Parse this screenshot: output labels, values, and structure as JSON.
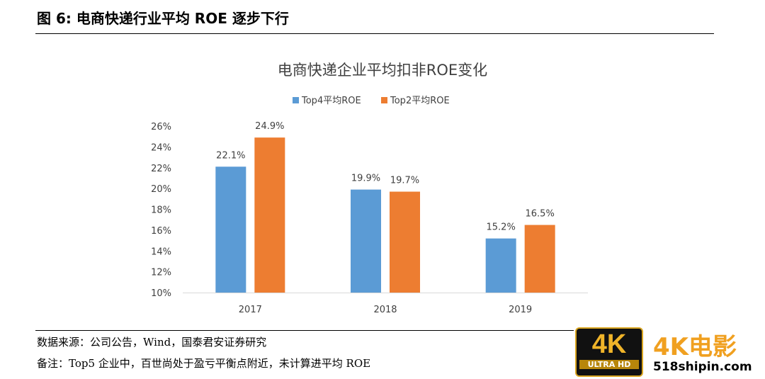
{
  "figure_title": "图 6: 电商快递行业平均 ROE 逐步下行",
  "source": "数据来源：公司公告，Wind，国泰君安证券研究",
  "note": "备注：Top5 企业中，百世尚处于盈亏平衡点附近，未计算进平均 ROE",
  "watermark": {
    "badge": "4K",
    "badge_sub": "ULTRA HD",
    "name": "4K电影",
    "url": "518shipin.com"
  },
  "chart_data": {
    "type": "bar",
    "title": "电商快递企业平均扣非ROE变化",
    "categories": [
      "2017",
      "2018",
      "2019"
    ],
    "series": [
      {
        "name": "Top4平均ROE",
        "values": [
          22.1,
          19.9,
          15.2
        ],
        "labels": [
          "22.1%",
          "19.9%",
          "15.2%"
        ],
        "color": "#5B9BD5"
      },
      {
        "name": "Top2平均ROE",
        "values": [
          24.9,
          19.7,
          16.5
        ],
        "labels": [
          "24.9%",
          "19.7%",
          "16.5%"
        ],
        "color": "#ED7D31"
      }
    ],
    "ylim": [
      10,
      26
    ],
    "yticks": [
      "10%",
      "12%",
      "14%",
      "16%",
      "18%",
      "20%",
      "22%",
      "24%",
      "26%"
    ],
    "grid": false,
    "legend": "top"
  }
}
